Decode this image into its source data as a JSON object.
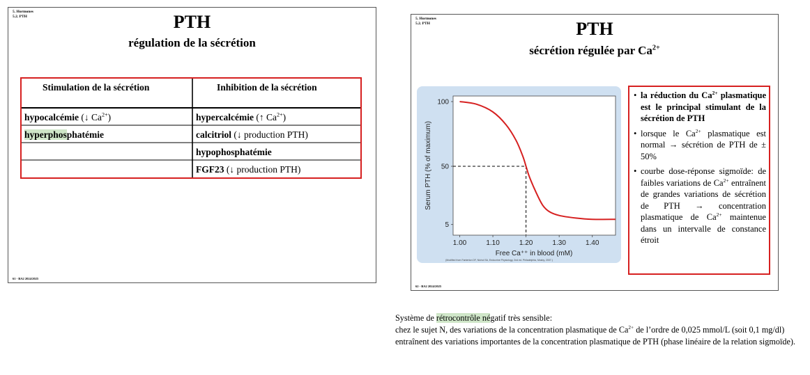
{
  "slide1": {
    "breadcrumb_line1": "5. Hormones",
    "breadcrumb_line2": "5.2. PTH",
    "title": "PTH",
    "subtitle": "régulation de la sécrétion",
    "footer": "61 - BA2 2024/2025",
    "table": {
      "header_left": "Stimulation de la sécrétion",
      "header_right": "Inhibition de la sécrétion",
      "left_rows": [
        {
          "bold": "hypocalcémie",
          "rest": " (↓ Ca",
          "sup": "2+",
          "tail": ")"
        },
        {
          "highlight": "hyperphos",
          "bold": "phatémie",
          "rest": "",
          "sup": "",
          "tail": ""
        }
      ],
      "right_rows": [
        {
          "bold": "hypercalcémie",
          "rest": " (↑ Ca",
          "sup": "2+",
          "tail": ")"
        },
        {
          "bold": "calcitriol",
          "rest": " (↓ production PTH)",
          "sup": "",
          "tail": ""
        },
        {
          "bold": "hypophosphatémie",
          "rest": "",
          "sup": "",
          "tail": ""
        },
        {
          "bold": "FGF23",
          "rest": " (↓ production PTH)",
          "sup": "",
          "tail": ""
        }
      ]
    }
  },
  "slide2": {
    "breadcrumb_line1": "5. Hormones",
    "breadcrumb_line2": "5.2. PTH",
    "title": "PTH",
    "subtitle_text": "sécrétion régulée par Ca",
    "subtitle_sup": "2+",
    "footer": "62 - BA2 2024/2025",
    "bullets": [
      {
        "pre": "la réduction du Ca",
        "sup": "2+",
        "post": " plasmatique est le principal stimulant de la sécrétion de PTH",
        "bold": true
      },
      {
        "pre": "lorsque le Ca",
        "sup": "2+",
        "post": " plasmatique est normal → sécrétion de PTH de ± 50%",
        "bold": false
      },
      {
        "pre": "courbe dose-réponse sigmoïde: de faibles variations de Ca",
        "sup": "2+",
        "post": " entraînent de grandes variations de sécrétion de PTH → concentration plasmatique de Ca",
        "sup2": "2+",
        "post2": " maintenue dans un intervalle de constance étroit",
        "bold": false
      }
    ]
  },
  "chart_data": {
    "type": "line",
    "xlabel": "Free Ca⁺⁺ in blood (mM)",
    "ylabel": "Serum PTH (% of maximum)",
    "x_ticks": [
      "1.00",
      "1.10",
      "1.20",
      "1.30",
      "1.40"
    ],
    "y_ticks": [
      "100",
      "50",
      "5"
    ],
    "xlim": [
      0.98,
      1.47
    ],
    "ylim": [
      0,
      100
    ],
    "source_note": "(Modified from Fanterton DF, Nichol SA, Endocrine Physiology, 2nd ed. Philadelphia, Mosby, 2007.)",
    "series": [
      {
        "color": "#d62020",
        "x": [
          1.0,
          1.05,
          1.1,
          1.14,
          1.17,
          1.19,
          1.2,
          1.21,
          1.23,
          1.25,
          1.27,
          1.3,
          1.35,
          1.4,
          1.47
        ],
        "y": [
          100,
          98,
          92,
          82,
          70,
          58,
          50,
          42,
          30,
          20,
          15,
          12,
          10,
          9,
          9
        ]
      }
    ],
    "reference": {
      "x": 1.2,
      "y": 50
    }
  },
  "notes": {
    "line1_pre": "Système de ",
    "line1_highlight": "rétrocontrôle né",
    "line1_post": "gatif très sensible:",
    "line2_pre": "chez le sujet N, des variations de la concentration plasmatique de Ca",
    "line2_sup": "2+",
    "line2_post": " de l’ordre de 0,025 mmol/L (soit 0,1 mg/dl) entraînent des variations importantes de la concentration plasmatique de PTH (phase linéaire de la relation sigmoïde)."
  },
  "colors": {
    "accent_red": "#d62020",
    "chart_bg": "#cfe0f1",
    "highlight": "#cfe6c8"
  }
}
